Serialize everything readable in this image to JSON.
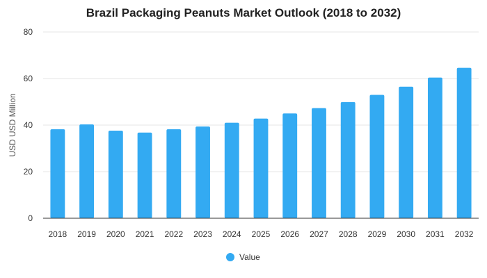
{
  "chart_data": {
    "type": "bar",
    "title": "Brazil Packaging Peanuts Market Outlook (2018 to 2032)",
    "xlabel": "",
    "ylabel": "USD USD Million",
    "categories": [
      "2018",
      "2019",
      "2020",
      "2021",
      "2022",
      "2023",
      "2024",
      "2025",
      "2026",
      "2027",
      "2028",
      "2029",
      "2030",
      "2031",
      "2032"
    ],
    "series": [
      {
        "name": "Value",
        "values": [
          38.2,
          40.3,
          37.6,
          36.8,
          38.2,
          39.4,
          41.0,
          42.8,
          45.0,
          47.3,
          49.9,
          53.0,
          56.5,
          60.4,
          64.6
        ]
      }
    ],
    "ylim": [
      0,
      80
    ],
    "yticks": [
      0,
      20,
      40,
      60,
      80
    ],
    "grid": true,
    "legend": "bottom",
    "colors": {
      "bar": "#33aaf2"
    }
  }
}
